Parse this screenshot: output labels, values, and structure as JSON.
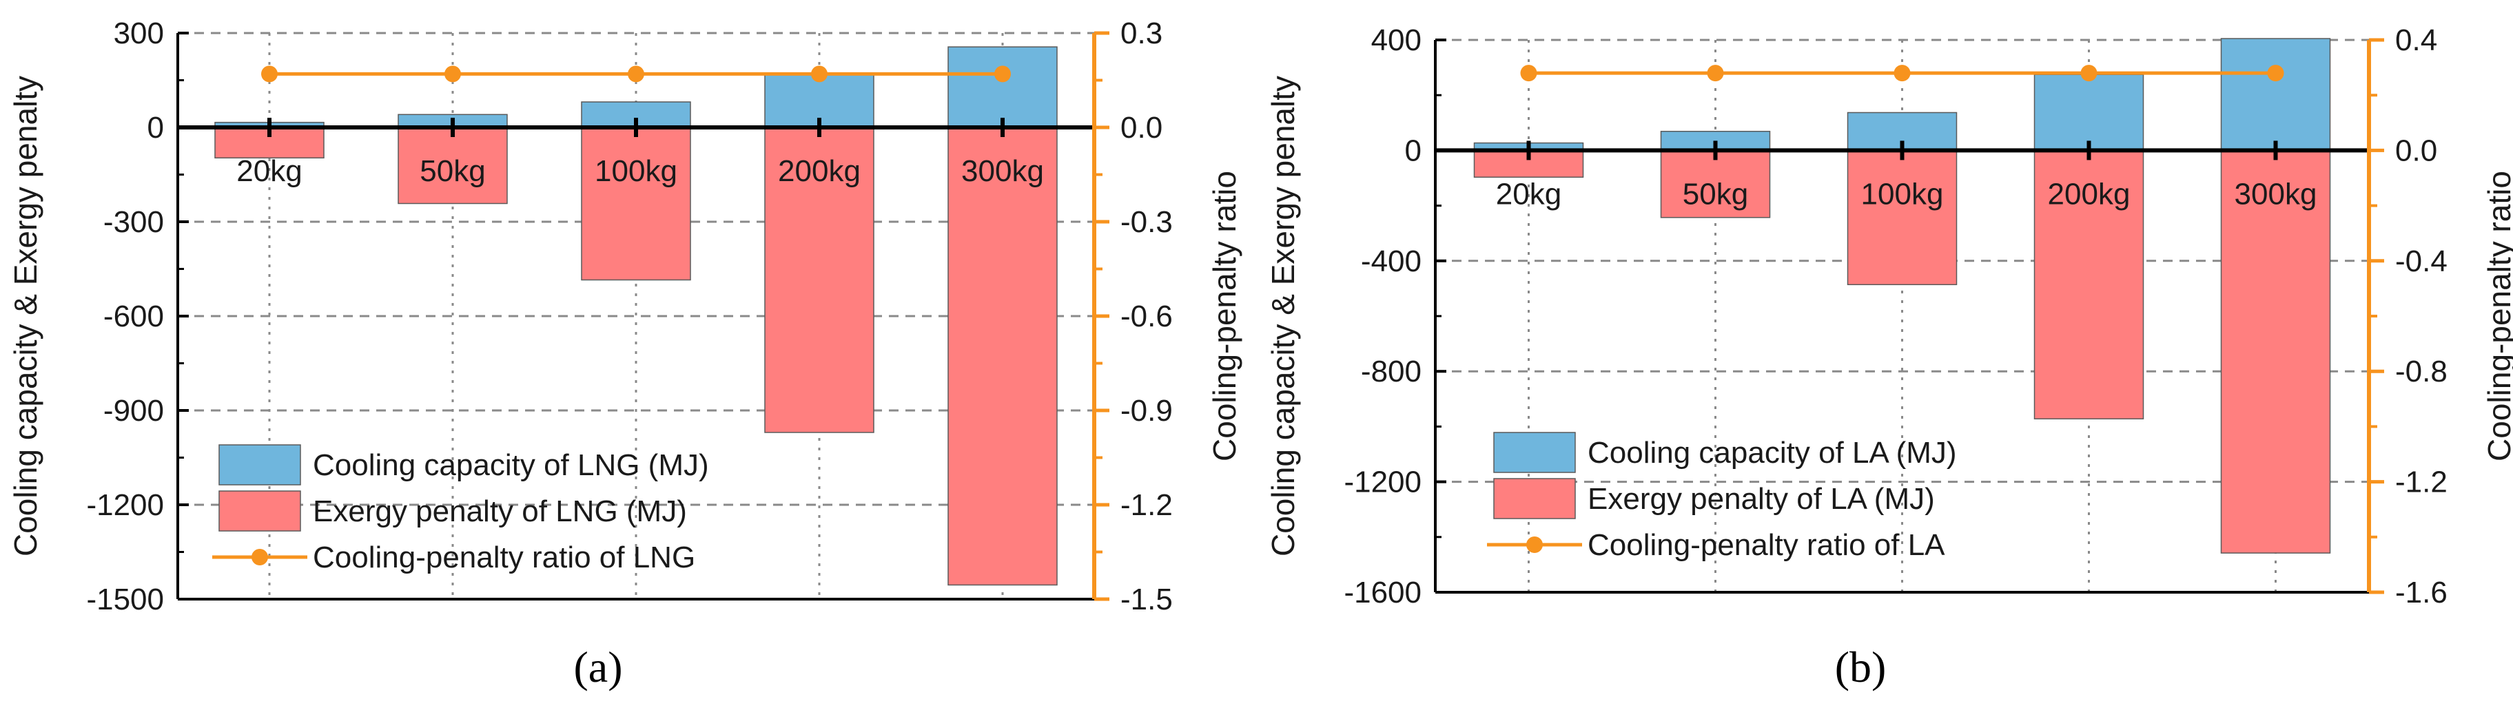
{
  "colors": {
    "capacity": "#6fb6dd",
    "penalty": "#ff7f7f",
    "ratio": "#f7931e",
    "axis": "#000000",
    "grid": "#8a8a8a"
  },
  "chart_data": [
    {
      "type": "bar",
      "panel_label": "(a)",
      "title": "",
      "categories": [
        "20kg",
        "50kg",
        "100kg",
        "200kg",
        "300kg"
      ],
      "series": [
        {
          "name": "Cooling capacity of LNG (MJ)",
          "kind": "bar",
          "axis": "left",
          "values": [
            16,
            41,
            81,
            172,
            256
          ]
        },
        {
          "name": "Exergy penalty of LNG (MJ)",
          "kind": "bar",
          "axis": "left",
          "values": [
            -97,
            -242,
            -485,
            -970,
            -1455
          ]
        },
        {
          "name": "Cooling-penalty ratio of LNG",
          "kind": "line",
          "axis": "right",
          "values": [
            0.17,
            0.17,
            0.17,
            0.17,
            0.17
          ]
        }
      ],
      "ylabel": "Cooling capacity & Exergy penalty",
      "y2label": "Cooling-penalty ratio",
      "ylim": [
        -1500,
        300
      ],
      "yticks": [
        "300",
        "0",
        "-300",
        "-600",
        "-900",
        "-1200",
        "-1500"
      ],
      "y2lim": [
        -1.5,
        0.3
      ],
      "y2ticks": [
        "0.3",
        "0.0",
        "-0.3",
        "-0.6",
        "-0.9",
        "-1.2",
        "-1.5"
      ],
      "legend_position": "bottom-left"
    },
    {
      "type": "bar",
      "panel_label": "(b)",
      "title": "",
      "categories": [
        "20kg",
        "50kg",
        "100kg",
        "200kg",
        "300kg"
      ],
      "series": [
        {
          "name": "Cooling capacity of LA (MJ)",
          "kind": "bar",
          "axis": "left",
          "values": [
            27,
            69,
            137,
            275,
            405
          ]
        },
        {
          "name": "Exergy penalty of LA (MJ)",
          "kind": "bar",
          "axis": "left",
          "values": [
            -97,
            -243,
            -486,
            -972,
            -1458
          ]
        },
        {
          "name": "Cooling-penalty ratio of LA",
          "kind": "line",
          "axis": "right",
          "values": [
            0.28,
            0.28,
            0.28,
            0.28,
            0.28
          ]
        }
      ],
      "ylabel": "Cooling capacity & Exergy penalty",
      "y2label": "Cooling-penalty ratio",
      "ylim": [
        -1600,
        400
      ],
      "yticks": [
        "400",
        "0",
        "-400",
        "-800",
        "-1200",
        "-1600"
      ],
      "y2lim": [
        -1.6,
        0.4
      ],
      "y2ticks": [
        "0.4",
        "0.0",
        "-0.4",
        "-0.8",
        "-1.2",
        "-1.6"
      ],
      "legend_position": "bottom-left"
    }
  ]
}
